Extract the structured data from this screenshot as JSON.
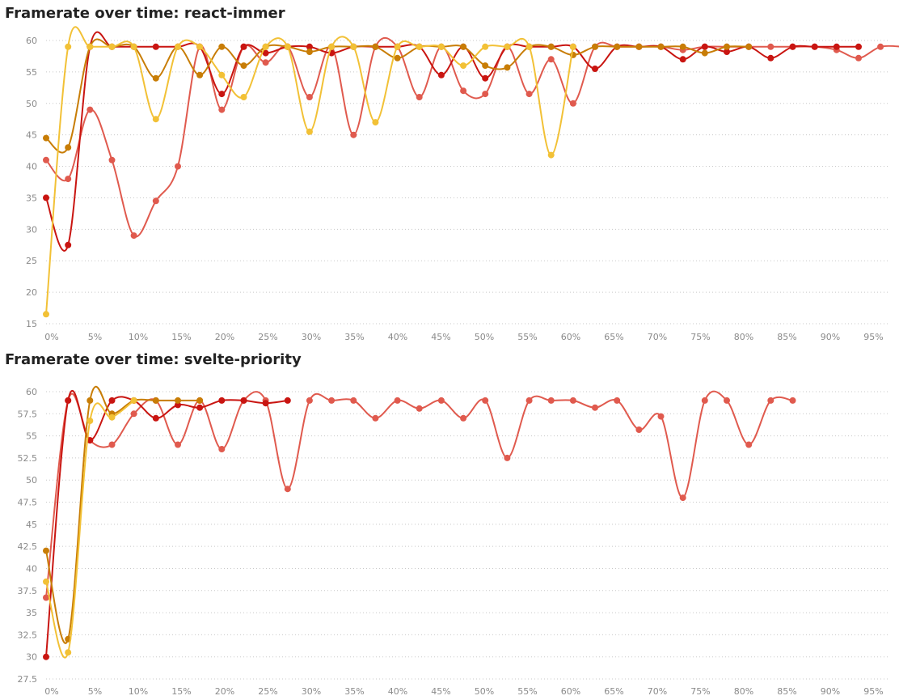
{
  "chart_data": [
    {
      "type": "line",
      "title": "Framerate over time: react-immer",
      "xlabel": "",
      "ylabel": "",
      "x_tick_labels": [
        "0%",
        "5%",
        "10%",
        "15%",
        "20%",
        "25%",
        "30%",
        "35%",
        "40%",
        "45%",
        "50%",
        "55%",
        "60%",
        "65%",
        "70%",
        "75%",
        "80%",
        "85%",
        "90%",
        "95%"
      ],
      "y_tick_labels": [
        "15",
        "20",
        "25",
        "30",
        "35",
        "40",
        "45",
        "50",
        "55",
        "60"
      ],
      "xlim": [
        0,
        96
      ],
      "ylim": [
        15,
        60
      ],
      "grid": true,
      "legend": "none",
      "series": [
        {
          "color": "#e05a4e",
          "x": [
            0,
            2.5,
            5,
            7.5,
            10,
            12.5,
            15,
            17.5,
            20,
            22.5,
            25,
            27.5,
            30,
            32.5,
            35,
            37.5,
            40,
            42.5,
            45,
            47.5,
            50,
            52.5,
            55,
            57.5,
            60,
            62.5,
            65,
            67.5,
            70,
            72.5,
            75,
            77.5,
            80,
            82.5,
            85,
            87.5,
            90,
            92.5,
            95,
            97.5
          ],
          "values": [
            41,
            38,
            49,
            41,
            29,
            34.5,
            40,
            59,
            49,
            59,
            56.5,
            59,
            51,
            59,
            45,
            59,
            59,
            51,
            59,
            52,
            51.5,
            59,
            51.5,
            57,
            50,
            59,
            59,
            59,
            59,
            58.5,
            59,
            59,
            59,
            59,
            59,
            59,
            58.5,
            57.2,
            59,
            59
          ]
        },
        {
          "color": "#c91511",
          "x": [
            0,
            2.5,
            5,
            7.5,
            10,
            12.5,
            15,
            17.5,
            20,
            22.5,
            25,
            27.5,
            30,
            32.5,
            35,
            37.5,
            40,
            42.5,
            45,
            47.5,
            50,
            52.5,
            55,
            57.5,
            60,
            62.5,
            65,
            67.5,
            70,
            72.5,
            75,
            77.5,
            80,
            82.5,
            85,
            87.5,
            90,
            92.5
          ],
          "values": [
            35,
            27.5,
            59,
            59,
            59,
            59,
            59,
            59,
            51.5,
            59,
            58,
            59,
            59,
            58,
            59,
            59,
            59,
            59,
            54.5,
            59,
            54,
            59,
            59,
            59,
            59,
            55.5,
            59,
            59,
            59,
            57,
            59,
            58.2,
            59,
            57.2,
            59,
            59,
            59,
            59
          ]
        },
        {
          "color": "#c87d06",
          "x": [
            0,
            2.5,
            5,
            7.5,
            10,
            12.5,
            15,
            17.5,
            20,
            22.5,
            25,
            27.5,
            30,
            32.5,
            35,
            37.5,
            40,
            42.5,
            45,
            47.5,
            50,
            52.5,
            55,
            57.5,
            60,
            62.5,
            65,
            67.5,
            70,
            72.5,
            75,
            77.5,
            80
          ],
          "values": [
            44.5,
            43,
            59,
            59,
            59,
            54,
            59,
            54.5,
            59,
            56,
            59,
            59,
            58.2,
            59,
            59,
            59,
            57.2,
            59,
            59,
            59,
            56,
            55.7,
            59,
            59,
            57.7,
            59,
            59,
            59,
            59,
            59,
            58,
            59,
            59
          ]
        },
        {
          "color": "#f2c136",
          "x": [
            0,
            2.5,
            5,
            7.5,
            10,
            12.5,
            15,
            17.5,
            20,
            22.5,
            25,
            27.5,
            30,
            32.5,
            35,
            37.5,
            40,
            42.5,
            45,
            47.5,
            50,
            52.5,
            55,
            57.5,
            60
          ],
          "values": [
            16.5,
            59,
            59,
            59,
            59,
            47.5,
            59,
            59,
            54.5,
            51,
            59,
            59,
            45.5,
            59,
            59,
            47,
            59,
            59,
            59,
            56,
            59,
            59,
            59,
            41.8,
            59
          ]
        }
      ]
    },
    {
      "type": "line",
      "title": "Framerate over time: svelte-priority",
      "xlabel": "",
      "ylabel": "",
      "x_tick_labels": [
        "0%",
        "5%",
        "10%",
        "15%",
        "20%",
        "25%",
        "30%",
        "35%",
        "40%",
        "45%",
        "50%",
        "55%",
        "60%",
        "65%",
        "70%",
        "75%",
        "80%",
        "85%",
        "90%",
        "95%"
      ],
      "y_tick_labels": [
        "27.5",
        "30",
        "32.5",
        "35",
        "37.5",
        "40",
        "42.5",
        "45",
        "47.5",
        "50",
        "52.5",
        "55",
        "57.5",
        "60"
      ],
      "xlim": [
        0,
        96
      ],
      "ylim": [
        27.5,
        60
      ],
      "grid": true,
      "legend": "none",
      "series": [
        {
          "color": "#e05a4e",
          "x": [
            0,
            2.5,
            5,
            7.5,
            10,
            12.5,
            15,
            17.5,
            20,
            22.5,
            25,
            27.5,
            30,
            32.5,
            35,
            37.5,
            40,
            42.5,
            45,
            47.5,
            50,
            52.5,
            55,
            57.5,
            60,
            62.5,
            65,
            67.5,
            70,
            72.5,
            75,
            77.5,
            80,
            82.5,
            85
          ],
          "values": [
            36.7,
            59,
            54.5,
            54,
            57.5,
            59,
            54,
            59,
            53.5,
            59,
            59,
            49,
            59,
            59,
            59,
            57,
            59,
            58.1,
            59,
            57,
            59,
            52.5,
            59,
            59,
            59,
            58.2,
            59,
            55.7,
            57.2,
            48,
            59,
            59,
            54,
            59,
            59
          ]
        },
        {
          "color": "#c91511",
          "x": [
            0,
            2.5,
            5,
            7.5,
            10,
            12.5,
            15,
            17.5,
            20,
            22.5,
            25,
            27.5
          ],
          "values": [
            30,
            59,
            54.5,
            59,
            59,
            57,
            58.5,
            58.2,
            59,
            59,
            58.7,
            59
          ]
        },
        {
          "color": "#c87d06",
          "x": [
            0,
            2.5,
            5,
            7.5,
            10,
            12.5,
            15,
            17.5
          ],
          "values": [
            42,
            32,
            59,
            57.5,
            59,
            59,
            59,
            59
          ]
        },
        {
          "color": "#f2c136",
          "x": [
            0,
            2.5,
            5,
            7.5,
            10
          ],
          "values": [
            38.5,
            30.5,
            56.7,
            57.1,
            59
          ]
        }
      ]
    }
  ]
}
